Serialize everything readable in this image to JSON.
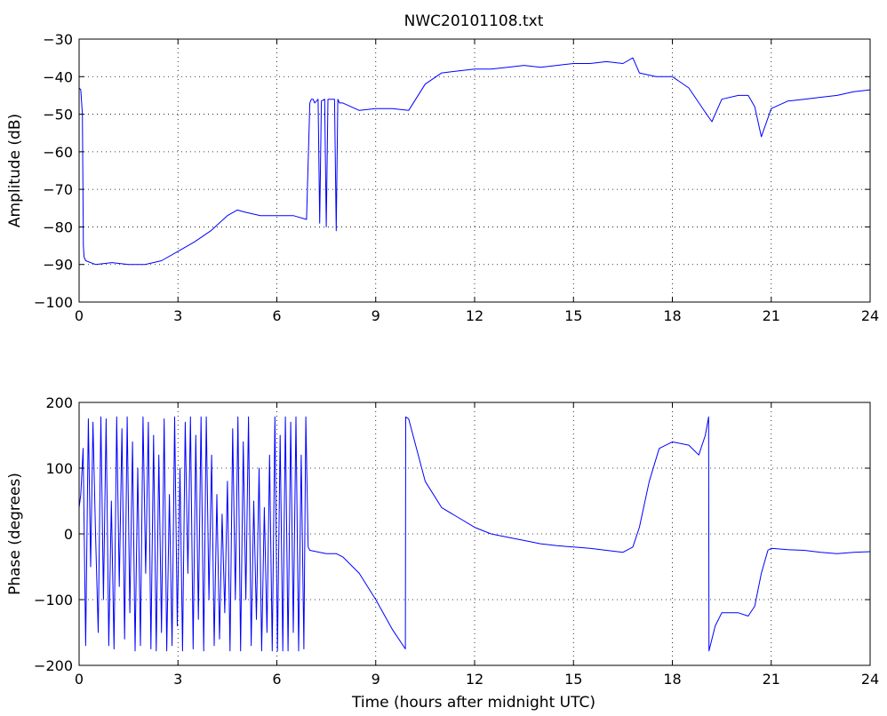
{
  "chart_data": [
    {
      "type": "line",
      "title": "NWC20101108.txt",
      "xlabel": "",
      "ylabel": "Amplitude (dB)",
      "xlim": [
        0,
        24
      ],
      "ylim": [
        -100,
        -30
      ],
      "xticks": [
        0,
        3,
        6,
        9,
        12,
        15,
        18,
        21,
        24
      ],
      "yticks": [
        -100,
        -90,
        -80,
        -70,
        -60,
        -50,
        -40,
        -30
      ],
      "x_tick_labels": [
        "0",
        "3",
        "6",
        "9",
        "12",
        "15",
        "18",
        "21",
        "24"
      ],
      "y_tick_labels": [
        "−100",
        "−90",
        "−80",
        "−70",
        "−60",
        "−50",
        "−40",
        "−30"
      ],
      "grid": true,
      "color": "#0000ff",
      "series": [
        {
          "x": [
            0,
            0.05,
            0.1,
            0.13,
            0.15,
            0.2,
            0.5,
            1,
            1.5,
            2,
            2.5,
            3,
            3.5,
            4,
            4.5,
            4.8,
            5,
            5.5,
            6,
            6.5,
            6.9,
            7.0,
            7.05,
            7.1,
            7.15,
            7.25,
            7.3,
            7.35,
            7.45,
            7.5,
            7.55,
            7.6,
            7.7,
            7.75,
            7.8,
            7.85,
            7.9,
            8,
            8.5,
            9,
            9.5,
            10,
            10.5,
            11,
            11.5,
            12,
            12.5,
            13,
            13.5,
            14,
            14.5,
            15,
            15.5,
            16,
            16.5,
            16.8,
            17,
            17.5,
            18,
            18.5,
            19,
            19.2,
            19.5,
            20,
            20.3,
            20.5,
            20.7,
            21,
            21.5,
            22,
            22.5,
            23,
            23.5,
            24
          ],
          "y": [
            -43,
            -43.5,
            -50,
            -85,
            -88,
            -89,
            -90,
            -89.5,
            -90,
            -90,
            -89,
            -86.5,
            -84,
            -81,
            -77,
            -75.5,
            -76,
            -77,
            -77,
            -77,
            -78,
            -47,
            -46,
            -46,
            -47,
            -46,
            -79,
            -46.5,
            -46,
            -80,
            -46,
            -46,
            -46,
            -46,
            -81,
            -46,
            -47,
            -47,
            -49,
            -48.5,
            -48.5,
            -49,
            -42,
            -39,
            -38.5,
            -38,
            -38,
            -37.5,
            -37,
            -37.5,
            -37,
            -36.5,
            -36.5,
            -36,
            -36.5,
            -35,
            -39,
            -40,
            -40,
            -43,
            -49.5,
            -52,
            -46,
            -45,
            -45,
            -48,
            -56,
            -48.5,
            -46.5,
            -46,
            -45.5,
            -45,
            -44,
            -43.5
          ]
        }
      ]
    },
    {
      "type": "line",
      "title": "",
      "xlabel": "Time (hours after midnight UTC)",
      "ylabel": "Phase (degrees)",
      "xlim": [
        0,
        24
      ],
      "ylim": [
        -200,
        200
      ],
      "xticks": [
        0,
        3,
        6,
        9,
        12,
        15,
        18,
        21,
        24
      ],
      "yticks": [
        -200,
        -100,
        0,
        100,
        200
      ],
      "x_tick_labels": [
        "0",
        "3",
        "6",
        "9",
        "12",
        "15",
        "18",
        "21",
        "24"
      ],
      "y_tick_labels": [
        "−200",
        "−100",
        "0",
        "100",
        "200"
      ],
      "grid": true,
      "color": "#0000ff",
      "series": [
        {
          "x": [
            0,
            0.05,
            0.12,
            0.2,
            0.28,
            0.35,
            0.42,
            0.5,
            0.58,
            0.66,
            0.74,
            0.82,
            0.9,
            0.98,
            1.06,
            1.14,
            1.22,
            1.3,
            1.38,
            1.46,
            1.54,
            1.62,
            1.7,
            1.78,
            1.86,
            1.94,
            2.02,
            2.1,
            2.18,
            2.26,
            2.34,
            2.42,
            2.5,
            2.58,
            2.66,
            2.74,
            2.82,
            2.9,
            2.98,
            3.06,
            3.14,
            3.22,
            3.3,
            3.38,
            3.46,
            3.54,
            3.62,
            3.7,
            3.78,
            3.86,
            3.94,
            4.02,
            4.1,
            4.18,
            4.26,
            4.34,
            4.42,
            4.5,
            4.58,
            4.66,
            4.74,
            4.82,
            4.9,
            4.98,
            5.06,
            5.14,
            5.22,
            5.3,
            5.38,
            5.46,
            5.54,
            5.62,
            5.7,
            5.78,
            5.86,
            5.94,
            6.02,
            6.1,
            6.18,
            6.26,
            6.34,
            6.42,
            6.5,
            6.58,
            6.66,
            6.74,
            6.82,
            6.88,
            6.95,
            7.0,
            7.5,
            7.8,
            8.0,
            8.5,
            9.0,
            9.5,
            9.9,
            9.91,
            10.0,
            10.5,
            11,
            11.5,
            12,
            12.5,
            13,
            13.5,
            14,
            14.5,
            15,
            15.5,
            16,
            16.5,
            16.8,
            17,
            17.3,
            17.6,
            18,
            18.5,
            18.8,
            19.0,
            19.1,
            19.11,
            19.3,
            19.5,
            20,
            20.3,
            20.5,
            20.7,
            20.9,
            21.0,
            21.5,
            22,
            22.5,
            23,
            23.5,
            24
          ],
          "y": [
            40,
            60,
            130,
            -170,
            175,
            -50,
            170,
            0,
            -150,
            178,
            -100,
            175,
            -170,
            50,
            -175,
            178,
            -80,
            160,
            -160,
            178,
            -120,
            140,
            -178,
            100,
            -170,
            178,
            -60,
            170,
            -175,
            150,
            -178,
            120,
            -150,
            175,
            -178,
            60,
            -170,
            178,
            -140,
            100,
            -178,
            170,
            -60,
            178,
            -175,
            150,
            -130,
            178,
            -178,
            178,
            -100,
            120,
            -170,
            60,
            -160,
            30,
            -120,
            80,
            -178,
            160,
            -100,
            178,
            -178,
            140,
            -100,
            178,
            -170,
            50,
            -130,
            100,
            -178,
            40,
            -150,
            120,
            -178,
            178,
            -178,
            150,
            -178,
            178,
            -178,
            170,
            -150,
            178,
            -178,
            120,
            -175,
            178,
            -20,
            -25,
            -30,
            -30,
            -35,
            -60,
            -100,
            -145,
            -175,
            178,
            175,
            80,
            40,
            25,
            10,
            0,
            -5,
            -10,
            -15,
            -18,
            -20,
            -22,
            -25,
            -28,
            -20,
            10,
            80,
            130,
            140,
            135,
            120,
            150,
            178,
            -178,
            -140,
            -120,
            -120,
            -125,
            -110,
            -60,
            -25,
            -22,
            -24,
            -25,
            -28,
            -30,
            -28,
            -27
          ]
        }
      ]
    }
  ]
}
